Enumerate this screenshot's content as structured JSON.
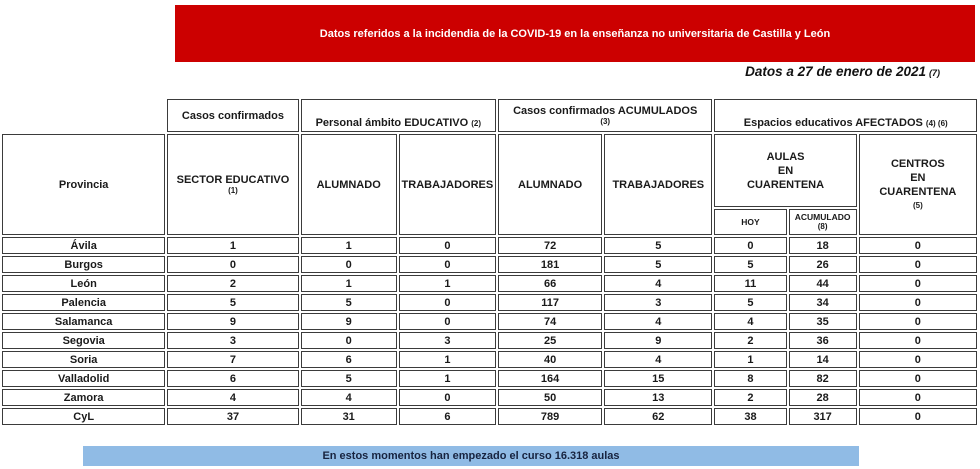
{
  "banner": {
    "text": "Datos referidos a la incidendia de la COVID-19 en la enseñanza no universitaria de Castilla y León",
    "bg_color": "#CC0000",
    "text_color": "#FFFFFF"
  },
  "date_line": {
    "text": "Datos a 27 de enero de 2021",
    "note": "(7)"
  },
  "table": {
    "group_headers": {
      "casos": {
        "label": "Casos confirmados"
      },
      "personal": {
        "label": "Personal ámbito EDUCATIVO",
        "note": "(2)"
      },
      "acumulados": {
        "label": "Casos confirmados ACUMULADOS",
        "note": "(3)"
      },
      "espacios": {
        "label": "Espacios educativos AFECTADOS",
        "note": "(4) (6)"
      }
    },
    "columns": {
      "provincia": "Provincia",
      "sector": "SECTOR EDUCATIVO",
      "sector_note": "(1)",
      "alumnado": "ALUMNADO",
      "trabajadores": "TRABAJADORES",
      "alumnado_acum": "ALUMNADO",
      "trabajadores_acum": "TRABAJADORES",
      "aulas_lines": [
        "AULAS",
        "EN",
        "CUARENTENA"
      ],
      "hoy": "HOY",
      "acumulado": "ACUMULADO",
      "acumulado_note": "(8)",
      "centros_lines": [
        "CENTROS",
        "EN",
        "CUARENTENA"
      ],
      "centros_note": "(5)"
    },
    "rows": [
      {
        "provincia": "Ávila",
        "values": [
          "1",
          "1",
          "0",
          "72",
          "5",
          "0",
          "18",
          "0"
        ]
      },
      {
        "provincia": "Burgos",
        "values": [
          "0",
          "0",
          "0",
          "181",
          "5",
          "5",
          "26",
          "0"
        ]
      },
      {
        "provincia": "León",
        "values": [
          "2",
          "1",
          "1",
          "66",
          "4",
          "11",
          "44",
          "0"
        ]
      },
      {
        "provincia": "Palencia",
        "values": [
          "5",
          "5",
          "0",
          "117",
          "3",
          "5",
          "34",
          "0"
        ]
      },
      {
        "provincia": "Salamanca",
        "values": [
          "9",
          "9",
          "0",
          "74",
          "4",
          "4",
          "35",
          "0"
        ]
      },
      {
        "provincia": "Segovia",
        "values": [
          "3",
          "0",
          "3",
          "25",
          "9",
          "2",
          "36",
          "0"
        ]
      },
      {
        "provincia": "Soria",
        "values": [
          "7",
          "6",
          "1",
          "40",
          "4",
          "1",
          "14",
          "0"
        ]
      },
      {
        "provincia": "Valladolid",
        "values": [
          "6",
          "5",
          "1",
          "164",
          "15",
          "8",
          "82",
          "0"
        ]
      },
      {
        "provincia": "Zamora",
        "values": [
          "4",
          "4",
          "0",
          "50",
          "13",
          "2",
          "28",
          "0"
        ]
      },
      {
        "provincia": "CyL",
        "values": [
          "37",
          "31",
          "6",
          "789",
          "62",
          "38",
          "317",
          "0"
        ]
      }
    ]
  },
  "footer_banner": {
    "text": "En estos momentos han empezado el curso 16.318 aulas",
    "bg_color": "#90BBE5"
  }
}
